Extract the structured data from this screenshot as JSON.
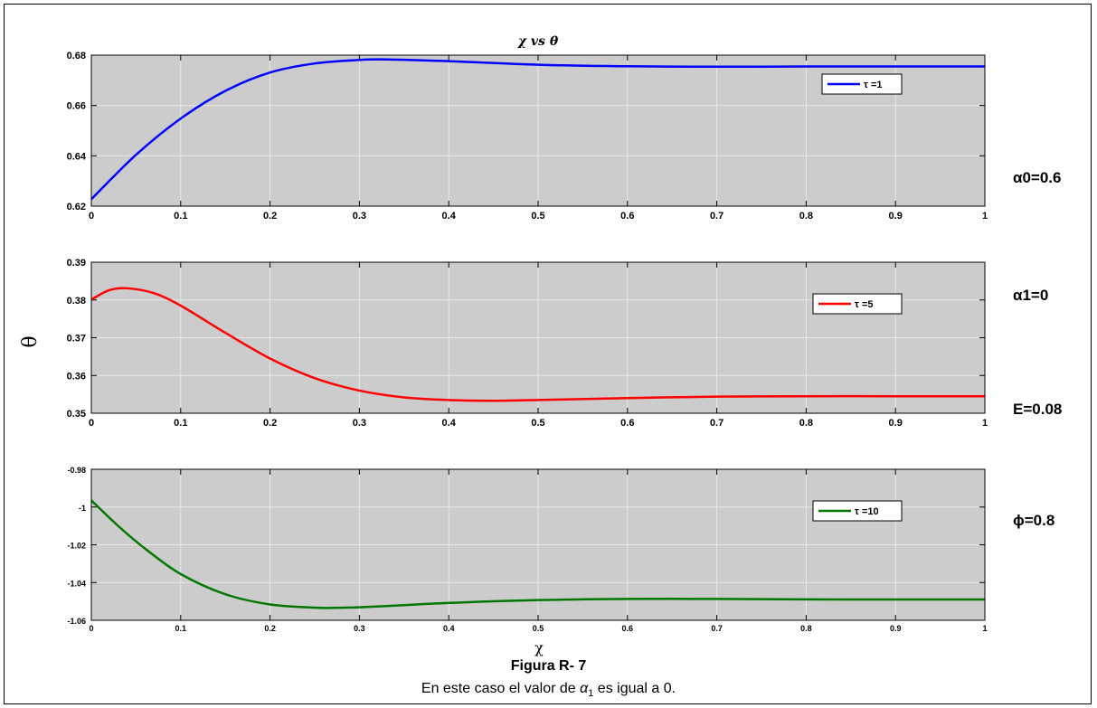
{
  "figure": {
    "caption_title": "Figura R- 7",
    "caption_prefix": "En este caso el valor de ",
    "caption_symbol": "α",
    "caption_sub": "1",
    "caption_suffix": " es igual a 0."
  },
  "params": {
    "alpha0": "α0=0.6",
    "alpha1": "α1=0",
    "E": "E=0.08",
    "phi": "ϕ=0.8"
  },
  "colors": {
    "plot_bg": "#cccccc",
    "grid": "#e8e8e8"
  },
  "chart_data": [
    {
      "type": "line",
      "title": "χ vs θ",
      "xlabel": "",
      "ylabel": "",
      "xlim": [
        0,
        1
      ],
      "ylim": [
        0.62,
        0.68
      ],
      "xticks": [
        "0",
        "0.1",
        "0.2",
        "0.3",
        "0.4",
        "0.5",
        "0.6",
        "0.7",
        "0.8",
        "0.9",
        "1"
      ],
      "yticks": [
        "0.62",
        "0.64",
        "0.66",
        "0.68"
      ],
      "grid": true,
      "legend": "top-right",
      "series": [
        {
          "name": "τ =1",
          "color": "#0000ff",
          "x": [
            0,
            0.05,
            0.1,
            0.15,
            0.2,
            0.25,
            0.3,
            0.33,
            0.4,
            0.5,
            0.6,
            0.7,
            0.8,
            0.9,
            1.0
          ],
          "y": [
            0.6228,
            0.6404,
            0.6548,
            0.6658,
            0.6731,
            0.6767,
            0.6781,
            0.6783,
            0.6776,
            0.6762,
            0.6756,
            0.6754,
            0.6755,
            0.6755,
            0.6755
          ]
        }
      ]
    },
    {
      "type": "line",
      "title": "",
      "xlabel": "",
      "ylabel": "θ",
      "xlim": [
        0,
        1
      ],
      "ylim": [
        0.35,
        0.39
      ],
      "xticks": [
        "0",
        "0.1",
        "0.2",
        "0.3",
        "0.4",
        "0.5",
        "0.6",
        "0.7",
        "0.8",
        "0.9",
        "1"
      ],
      "yticks": [
        "0.35",
        "0.36",
        "0.37",
        "0.38",
        "0.39"
      ],
      "grid": true,
      "legend": "top-right",
      "series": [
        {
          "name": "τ =5",
          "color": "#ff0000",
          "x": [
            0,
            0.02,
            0.04,
            0.07,
            0.1,
            0.15,
            0.2,
            0.25,
            0.3,
            0.35,
            0.4,
            0.45,
            0.5,
            0.6,
            0.7,
            0.8,
            0.9,
            1.0
          ],
          "y": [
            0.3801,
            0.3826,
            0.3831,
            0.3818,
            0.3785,
            0.3713,
            0.3645,
            0.3593,
            0.356,
            0.3542,
            0.3535,
            0.3533,
            0.3535,
            0.354,
            0.3544,
            0.3545,
            0.3545,
            0.3545
          ]
        }
      ]
    },
    {
      "type": "line",
      "title": "",
      "xlabel": "χ",
      "ylabel": "",
      "xlim": [
        0,
        1
      ],
      "ylim": [
        -1.06,
        -0.98
      ],
      "xticks": [
        "0",
        "0.1",
        "0.2",
        "0.3",
        "0.4",
        "0.5",
        "0.6",
        "0.7",
        "0.8",
        "0.9",
        "1"
      ],
      "yticks": [
        "-1.06",
        "-1.04",
        "-1.02",
        "-1",
        "-0.98"
      ],
      "grid": true,
      "legend": "top-right",
      "series": [
        {
          "name": "τ =10",
          "color": "#007700",
          "x": [
            0,
            0.03,
            0.06,
            0.1,
            0.15,
            0.2,
            0.25,
            0.27,
            0.3,
            0.35,
            0.4,
            0.5,
            0.6,
            0.7,
            0.8,
            0.9,
            1.0
          ],
          "y": [
            -0.9965,
            -1.01,
            -1.022,
            -1.0355,
            -1.0462,
            -1.0516,
            -1.0533,
            -1.0534,
            -1.0531,
            -1.052,
            -1.0508,
            -1.0493,
            -1.0487,
            -1.0487,
            -1.0489,
            -1.049,
            -1.049
          ]
        }
      ]
    }
  ]
}
